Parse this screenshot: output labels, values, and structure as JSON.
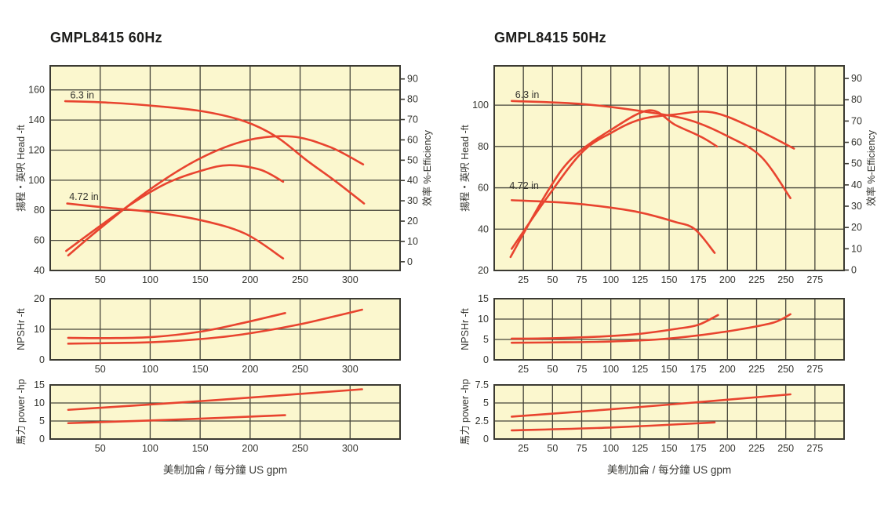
{
  "colors": {
    "page_bg": "#ffffff",
    "plot_bg": "#FBF7CE",
    "grid": "#45443a",
    "border": "#3b3a32",
    "curve": "#E8442F",
    "text": "#34342f",
    "title": "#1c1c1a"
  },
  "chart_data": [
    {
      "type": "line",
      "id": "gmpl8415-60hz",
      "title": "GMPL8415  60Hz",
      "x_axis_label": "美制加侖 / 每分鐘  US gpm",
      "plots": [
        {
          "kind": "head",
          "y_label": "揚程・英呎  Head -ft",
          "right_label": "效率  %-Efficiency",
          "x_domain": [
            0,
            350
          ],
          "x_ticks": [
            50,
            100,
            150,
            200,
            250,
            300
          ],
          "y_domain": [
            40,
            176
          ],
          "y_ticks": [
            40,
            60,
            80,
            100,
            120,
            140,
            160
          ],
          "grid_y": [
            60,
            80,
            100,
            120,
            140,
            160
          ],
          "eff_ticks": [
            0,
            10,
            20,
            30,
            40,
            50,
            60,
            70,
            80,
            90
          ],
          "eff_map": {
            "offset": 45.8,
            "scale": 1.35
          },
          "curves": [
            {
              "name": "head-6.3in",
              "label": "6.3 in",
              "label_at": [
                20,
                154.5
              ],
              "points": [
                [
                  15,
                  152.5
                ],
                [
                  60,
                  151.5
                ],
                [
                  110,
                  149
                ],
                [
                  155,
                  145.5
                ],
                [
                  195,
                  139
                ],
                [
                  226,
                  129
                ],
                [
                  257,
                  113
                ],
                [
                  285,
                  99.5
                ],
                [
                  314,
                  84.5
                ]
              ]
            },
            {
              "name": "head-4.72in",
              "label": "4.72 in",
              "label_at": [
                19,
                87
              ],
              "points": [
                [
                  17,
                  84.5
                ],
                [
                  60,
                  81.5
                ],
                [
                  100,
                  79
                ],
                [
                  150,
                  73.5
                ],
                [
                  195,
                  64.5
                ],
                [
                  233,
                  48
                ]
              ]
            },
            {
              "name": "efficiency-6.3in",
              "points": [
                [
                  18,
                  50
                ],
                [
                  50,
                  68
                ],
                [
                  100,
                  94
                ],
                [
                  150,
                  114.5
                ],
                [
                  197,
                  126.5
                ],
                [
                  242,
                  129
                ],
                [
                  280,
                  122
                ],
                [
                  313,
                  110.5
                ]
              ]
            },
            {
              "name": "efficiency-4.72in",
              "points": [
                [
                  16,
                  53
                ],
                [
                  74,
                  81
                ],
                [
                  115,
                  97.5
                ],
                [
                  152,
                  106.5
                ],
                [
                  179,
                  110
                ],
                [
                  210,
                  107
                ],
                [
                  233,
                  99
                ]
              ]
            }
          ]
        },
        {
          "kind": "npsh",
          "y_label": "NPSHr -ft",
          "x_domain": [
            0,
            350
          ],
          "x_ticks": [
            50,
            100,
            150,
            200,
            250,
            300
          ],
          "y_domain": [
            0,
            20
          ],
          "y_ticks": [
            0,
            10,
            20
          ],
          "grid_y": [
            10
          ],
          "curves": [
            {
              "name": "npsh-4.72in",
              "points": [
                [
                  18,
                  7.2
                ],
                [
                  60,
                  7.1
                ],
                [
                  103,
                  7.5
                ],
                [
                  150,
                  9.2
                ],
                [
                  192,
                  12
                ],
                [
                  235,
                  15.3
                ]
              ]
            },
            {
              "name": "npsh-6.3in",
              "points": [
                [
                  18,
                  5.3
                ],
                [
                  60,
                  5.5
                ],
                [
                  103,
                  5.8
                ],
                [
                  150,
                  6.8
                ],
                [
                  192,
                  8.3
                ],
                [
                  245,
                  11.3
                ],
                [
                  284,
                  14.2
                ],
                [
                  312,
                  16.4
                ]
              ]
            }
          ]
        },
        {
          "kind": "power",
          "y_label": "馬力  power -hp",
          "x_domain": [
            0,
            350
          ],
          "x_ticks": [
            50,
            100,
            150,
            200,
            250,
            300
          ],
          "y_domain": [
            0,
            15
          ],
          "y_ticks": [
            0,
            5,
            10,
            15
          ],
          "grid_y": [
            5,
            10
          ],
          "curves": [
            {
              "name": "power-6.3in",
              "points": [
                [
                  18,
                  8.1
                ],
                [
                  166,
                  10.8
                ],
                [
                  312,
                  13.8
                ]
              ]
            },
            {
              "name": "power-4.72in",
              "points": [
                [
                  18,
                  4.4
                ],
                [
                  126,
                  5.4
                ],
                [
                  235,
                  6.6
                ]
              ]
            }
          ]
        }
      ]
    },
    {
      "type": "line",
      "id": "gmpl8415-50hz",
      "title": "GMPL8415  50Hz",
      "x_axis_label": "美制加侖 / 每分鐘  US gpm",
      "plots": [
        {
          "kind": "head",
          "y_label": "揚程・英呎  Head -ft",
          "right_label": "效率  %-Efficiency",
          "x_domain": [
            0,
            300
          ],
          "x_ticks": [
            25,
            50,
            75,
            100,
            125,
            150,
            175,
            200,
            225,
            250,
            275
          ],
          "y_domain": [
            20,
            119
          ],
          "y_ticks": [
            20,
            40,
            60,
            80,
            100
          ],
          "grid_y": [
            40,
            60,
            80,
            100
          ],
          "eff_ticks": [
            0,
            10,
            20,
            30,
            40,
            50,
            60,
            70,
            80,
            90
          ],
          "eff_map": {
            "offset": 20.2,
            "scale": 1.03
          },
          "curves": [
            {
              "name": "head-6.3in",
              "label": "6.3 in",
              "label_at": [
                18,
                103.5
              ],
              "points": [
                [
                  15,
                  102
                ],
                [
                  76,
                  100.5
                ],
                [
                  133,
                  96.5
                ],
                [
                  169,
                  92.5
                ],
                [
                  200,
                  85
                ],
                [
                  229,
                  75
                ],
                [
                  254,
                  55
                ]
              ]
            },
            {
              "name": "head-4.72in",
              "label": "4.72 in",
              "label_at": [
                13,
                59.5
              ],
              "points": [
                [
                  15,
                  54
                ],
                [
                  67,
                  52.5
                ],
                [
                  111,
                  49.5
                ],
                [
                  133,
                  47
                ],
                [
                  155,
                  43.5
                ],
                [
                  172,
                  40
                ],
                [
                  189,
                  28.5
                ]
              ]
            },
            {
              "name": "efficiency-6.3in",
              "points": [
                [
                  15,
                  30.5
                ],
                [
                  45,
                  55
                ],
                [
                  75,
                  77
                ],
                [
                  100,
                  86.5
                ],
                [
                  125,
                  93
                ],
                [
                  155,
                  95.5
                ],
                [
                  187,
                  96.5
                ],
                [
                  222,
                  89
                ],
                [
                  257,
                  79
                ]
              ]
            },
            {
              "name": "efficiency-4.72in",
              "points": [
                [
                  14,
                  26.5
                ],
                [
                  45,
                  57.5
                ],
                [
                  67,
                  74.5
                ],
                [
                  100,
                  88
                ],
                [
                  133,
                  97.5
                ],
                [
                  155,
                  90.5
                ],
                [
                  178,
                  84.5
                ],
                [
                  191,
                  80
                ]
              ]
            }
          ]
        },
        {
          "kind": "npsh",
          "y_label": "NPSHr -ft",
          "x_domain": [
            0,
            300
          ],
          "x_ticks": [
            25,
            50,
            75,
            100,
            125,
            150,
            175,
            200,
            225,
            250,
            275
          ],
          "y_domain": [
            0,
            15
          ],
          "y_ticks": [
            0,
            5,
            10,
            15
          ],
          "grid_y": [
            5,
            10
          ],
          "curves": [
            {
              "name": "npsh-4.72in",
              "points": [
                [
                  15,
                  5.2
                ],
                [
                  50,
                  5.3
                ],
                [
                  90,
                  5.7
                ],
                [
                  122,
                  6.3
                ],
                [
                  156,
                  7.6
                ],
                [
                  175,
                  8.6
                ],
                [
                  192,
                  11
                ]
              ]
            },
            {
              "name": "npsh-6.3in",
              "points": [
                [
                  15,
                  4.2
                ],
                [
                  60,
                  4.3
                ],
                [
                  100,
                  4.5
                ],
                [
                  140,
                  5
                ],
                [
                  175,
                  6
                ],
                [
                  211,
                  7.5
                ],
                [
                  240,
                  9.2
                ],
                [
                  254,
                  11.2
                ]
              ]
            }
          ]
        },
        {
          "kind": "power",
          "y_label": "馬力  power -hp",
          "x_domain": [
            0,
            300
          ],
          "x_ticks": [
            25,
            50,
            75,
            100,
            125,
            150,
            175,
            200,
            225,
            250,
            275
          ],
          "y_domain": [
            0,
            7.5
          ],
          "y_ticks": [
            0,
            2.5,
            5,
            7.5
          ],
          "grid_y": [
            2.5,
            5
          ],
          "curves": [
            {
              "name": "power-6.3in",
              "points": [
                [
                  15,
                  3.1
                ],
                [
                  122,
                  4.4
                ],
                [
                  254,
                  6.2
                ]
              ]
            },
            {
              "name": "power-4.72in",
              "points": [
                [
                  15,
                  1.2
                ],
                [
                  100,
                  1.6
                ],
                [
                  189,
                  2.3
                ]
              ]
            }
          ]
        }
      ]
    }
  ]
}
